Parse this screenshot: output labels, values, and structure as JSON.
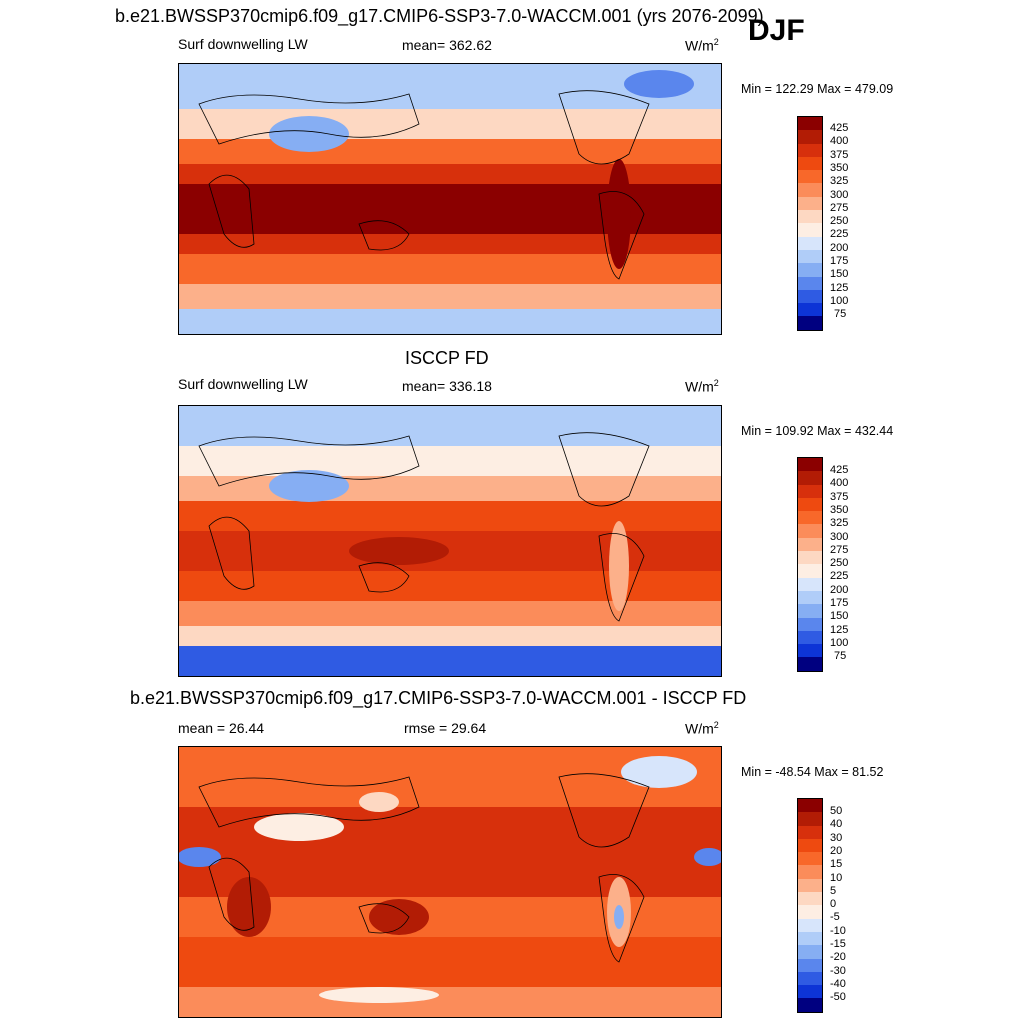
{
  "season": "DJF",
  "panels": [
    {
      "title": "b.e21.BWSSP370cmip6.f09_g17.CMIP6-SSP3-7.0-WACCM.001 (yrs 2076-2099)",
      "left_label": "Surf downwelling LW",
      "center_label": "mean= 362.62",
      "units": "W/m",
      "units_sup": "2",
      "minmax": "Min = 122.29 Max = 479.09",
      "colorbar_ticks": [
        "425",
        "400",
        "375",
        "350",
        "325",
        "300",
        "275",
        "250",
        "225",
        "200",
        "175",
        "150",
        "125",
        "100",
        "75"
      ]
    },
    {
      "title": "ISCCP FD",
      "left_label": "Surf downwelling LW",
      "center_label": "mean= 336.18",
      "units": "W/m",
      "units_sup": "2",
      "minmax": "Min = 109.92 Max = 432.44",
      "colorbar_ticks": [
        "425",
        "400",
        "375",
        "350",
        "325",
        "300",
        "275",
        "250",
        "225",
        "200",
        "175",
        "150",
        "125",
        "100",
        "75"
      ]
    },
    {
      "title": "b.e21.BWSSP370cmip6.f09_g17.CMIP6-SSP3-7.0-WACCM.001 - ISCCP FD",
      "left_label": "mean =  26.44",
      "center_label": "rmse =  29.64",
      "units": "W/m",
      "units_sup": "2",
      "minmax": "Min = -48.54 Max =  81.52",
      "colorbar_ticks": [
        "50",
        "40",
        "30",
        "20",
        "15",
        "10",
        "5",
        "0",
        "-5",
        "-10",
        "-15",
        "-20",
        "-30",
        "-40",
        "-50"
      ]
    }
  ],
  "colors": {
    "scale": [
      "#8b0000",
      "#b21c05",
      "#d7300c",
      "#ee4a10",
      "#f8682a",
      "#fb8c5a",
      "#fcb08a",
      "#fdd8c2",
      "#fdeee3",
      "#d7e5fb",
      "#b0cdf8",
      "#86aef3",
      "#5a86ed",
      "#2f5be3",
      "#0d34d6",
      "#0a1aa9",
      "#000080"
    ],
    "land_outline": "#000000"
  }
}
